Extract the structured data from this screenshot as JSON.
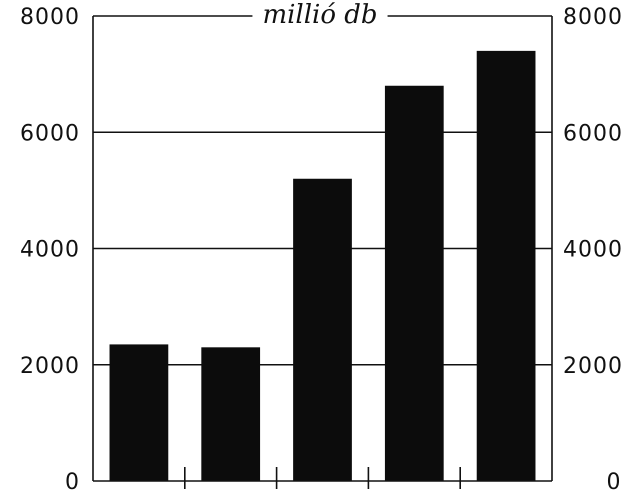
{
  "chart_data": {
    "type": "bar",
    "categories": [
      "",
      "",
      "",
      "",
      ""
    ],
    "values": [
      2350,
      2300,
      5200,
      6800,
      7400
    ],
    "unit_label": "millió db",
    "ylim": [
      0,
      8000
    ],
    "yticks": [
      "0",
      "2000",
      "4000",
      "6000",
      "8000"
    ],
    "right_yticks": [
      "0",
      "2000",
      "4000",
      "6000",
      "8000"
    ],
    "grid": true,
    "bar_color": "#0c0c0c"
  }
}
